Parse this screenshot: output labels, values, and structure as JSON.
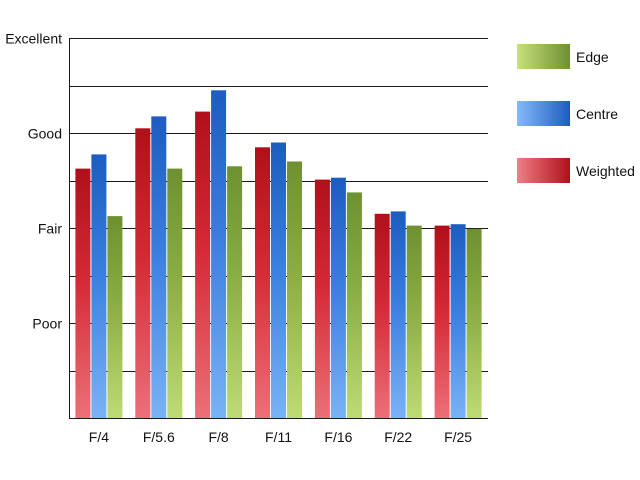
{
  "chart_data": {
    "type": "bar",
    "categories": [
      "F/4",
      "F/5.6",
      "F/8",
      "F/11",
      "F/16",
      "F/22",
      "F/25"
    ],
    "y_ticks": [
      {
        "value": 0,
        "label": ""
      },
      {
        "value": 1,
        "label": ""
      },
      {
        "value": 2,
        "label": "Poor"
      },
      {
        "value": 3,
        "label": ""
      },
      {
        "value": 4,
        "label": "Fair"
      },
      {
        "value": 5,
        "label": ""
      },
      {
        "value": 6,
        "label": "Good"
      },
      {
        "value": 7,
        "label": ""
      },
      {
        "value": 8,
        "label": "Excellent"
      }
    ],
    "ylim": [
      0,
      8
    ],
    "grid": true,
    "legend_position": "right",
    "series": [
      {
        "name": "Weighted",
        "color": "#c8141e",
        "values": [
          5.25,
          6.1,
          6.45,
          5.7,
          5.02,
          4.3,
          4.05
        ]
      },
      {
        "name": "Centre",
        "color": "#2a6ed4",
        "values": [
          5.55,
          6.35,
          6.9,
          5.8,
          5.06,
          4.35,
          4.08
        ]
      },
      {
        "name": "Edge",
        "color": "#7aa035",
        "values": [
          4.25,
          5.25,
          5.3,
          5.4,
          4.75,
          4.05,
          3.98
        ]
      }
    ],
    "legend_order": [
      "Edge",
      "Centre",
      "Weighted"
    ]
  }
}
